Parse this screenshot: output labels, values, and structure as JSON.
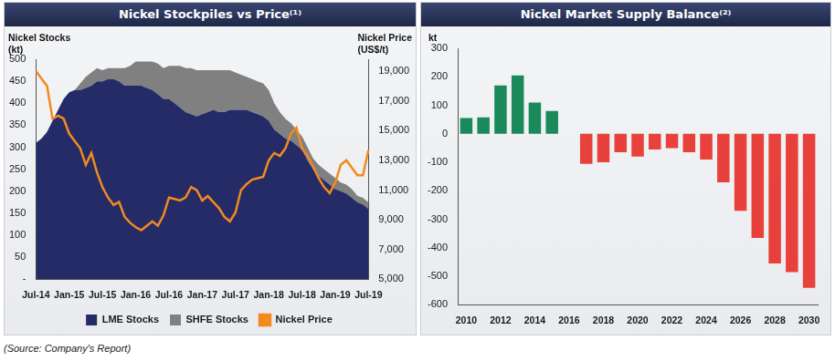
{
  "source": "(Source: Company's Report)",
  "chart_data": [
    {
      "type": "line",
      "title": "Nickel Stockpiles vs Price⁽¹⁾",
      "y_label": "Nickel Stocks\n(kt)",
      "y2_label": "Nickel Price\n(US$/t)",
      "categories": [
        "Jul-14",
        null,
        null,
        null,
        null,
        null,
        "Jan-15",
        null,
        null,
        null,
        null,
        null,
        "Jul-15",
        null,
        null,
        null,
        null,
        null,
        "Jan-16",
        null,
        null,
        null,
        null,
        null,
        "Jul-16",
        null,
        null,
        null,
        null,
        null,
        "Jan-17",
        null,
        null,
        null,
        null,
        null,
        "Jul-17",
        null,
        null,
        null,
        null,
        null,
        "Jan-18",
        null,
        null,
        null,
        null,
        null,
        "Jul-18",
        null,
        null,
        null,
        null,
        null,
        "Jan-19",
        null,
        null,
        null,
        null,
        null,
        "Jul-19"
      ],
      "series": [
        {
          "name": "LME Stocks",
          "color": "#242b66",
          "type": "area",
          "values": [
            310,
            320,
            335,
            360,
            385,
            410,
            425,
            430,
            430,
            435,
            440,
            450,
            450,
            455,
            455,
            450,
            440,
            440,
            440,
            440,
            435,
            430,
            420,
            410,
            410,
            400,
            390,
            380,
            375,
            370,
            375,
            380,
            385,
            380,
            380,
            385,
            385,
            385,
            385,
            380,
            375,
            370,
            360,
            340,
            330,
            320,
            315,
            305,
            295,
            270,
            250,
            235,
            225,
            215,
            205,
            200,
            195,
            185,
            175,
            170,
            160
          ]
        },
        {
          "name": "SHFE Stocks",
          "color": "#808080",
          "type": "area",
          "values": [
            0,
            0,
            0,
            0,
            0,
            0,
            0,
            0,
            15,
            25,
            30,
            30,
            25,
            25,
            25,
            30,
            40,
            45,
            55,
            55,
            60,
            65,
            70,
            70,
            75,
            85,
            95,
            100,
            105,
            105,
            100,
            95,
            90,
            95,
            95,
            90,
            85,
            80,
            75,
            75,
            75,
            75,
            70,
            60,
            50,
            45,
            40,
            35,
            30,
            30,
            25,
            25,
            25,
            25,
            25,
            20,
            20,
            20,
            15,
            15,
            15
          ]
        },
        {
          "name": "Nickel Price",
          "color": "#f28a1f",
          "type": "line",
          "axis": "y2",
          "values": [
            19000,
            18500,
            18000,
            15800,
            16000,
            15800,
            14800,
            14300,
            13800,
            12700,
            13500,
            12200,
            11200,
            10500,
            10000,
            10200,
            9200,
            8800,
            8500,
            8300,
            8600,
            8900,
            8600,
            9300,
            10500,
            10400,
            10300,
            10500,
            11200,
            11000,
            10300,
            10600,
            10200,
            9800,
            9200,
            8900,
            9500,
            11000,
            11400,
            11700,
            11800,
            11900,
            13000,
            13500,
            13300,
            13800,
            14800,
            15200,
            13800,
            13300,
            12600,
            11800,
            11200,
            10800,
            11500,
            12700,
            13000,
            12500,
            12000,
            12000,
            13700
          ]
        }
      ],
      "stacked": true,
      "ylim": [
        0,
        500
      ],
      "yticks": [
        {
          "value": 0,
          "label": "-"
        },
        50,
        100,
        150,
        200,
        250,
        300,
        350,
        400,
        450,
        500
      ],
      "y2lim": [
        5000,
        19800
      ],
      "y2ticks": [
        {
          "value": 5000,
          "label": "5,000"
        },
        {
          "value": 7000,
          "label": "7,000"
        },
        {
          "value": 9000,
          "label": "9,000"
        },
        {
          "value": 11000,
          "label": "11,000"
        },
        {
          "value": 13000,
          "label": "13,000"
        },
        {
          "value": 15000,
          "label": "15,000"
        },
        {
          "value": 17000,
          "label": "17,000"
        },
        {
          "value": 19000,
          "label": "19,000"
        }
      ],
      "grid": false,
      "legend": "bottom"
    },
    {
      "type": "bar",
      "title": "Nickel Market Supply Balance⁽²⁾",
      "y_label": "kt",
      "categories": [
        "2010",
        null,
        "2012",
        null,
        "2014",
        null,
        "2016",
        null,
        "2018",
        null,
        "2020",
        null,
        "2022",
        null,
        "2024",
        null,
        "2026",
        null,
        "2028",
        null,
        "2030"
      ],
      "values": [
        55,
        58,
        170,
        205,
        110,
        80,
        0,
        -105,
        -100,
        -65,
        -80,
        -55,
        -50,
        -65,
        -90,
        -170,
        -270,
        -365,
        -455,
        -485,
        -540
      ],
      "colors": [
        "#1b8a5a",
        "#1b8a5a",
        "#1b8a5a",
        "#1b8a5a",
        "#1b8a5a",
        "#1b8a5a",
        "#1b8a5a",
        "#e8413c",
        "#e8413c",
        "#e8413c",
        "#e8413c",
        "#e8413c",
        "#e8413c",
        "#e8413c",
        "#e8413c",
        "#e8413c",
        "#e8413c",
        "#e8413c",
        "#e8413c",
        "#e8413c",
        "#e8413c"
      ],
      "ylim": [
        -600,
        300
      ],
      "yticks": [
        -600,
        -500,
        -400,
        -300,
        -200,
        -100,
        0,
        100,
        200,
        300
      ],
      "grid": false
    }
  ]
}
